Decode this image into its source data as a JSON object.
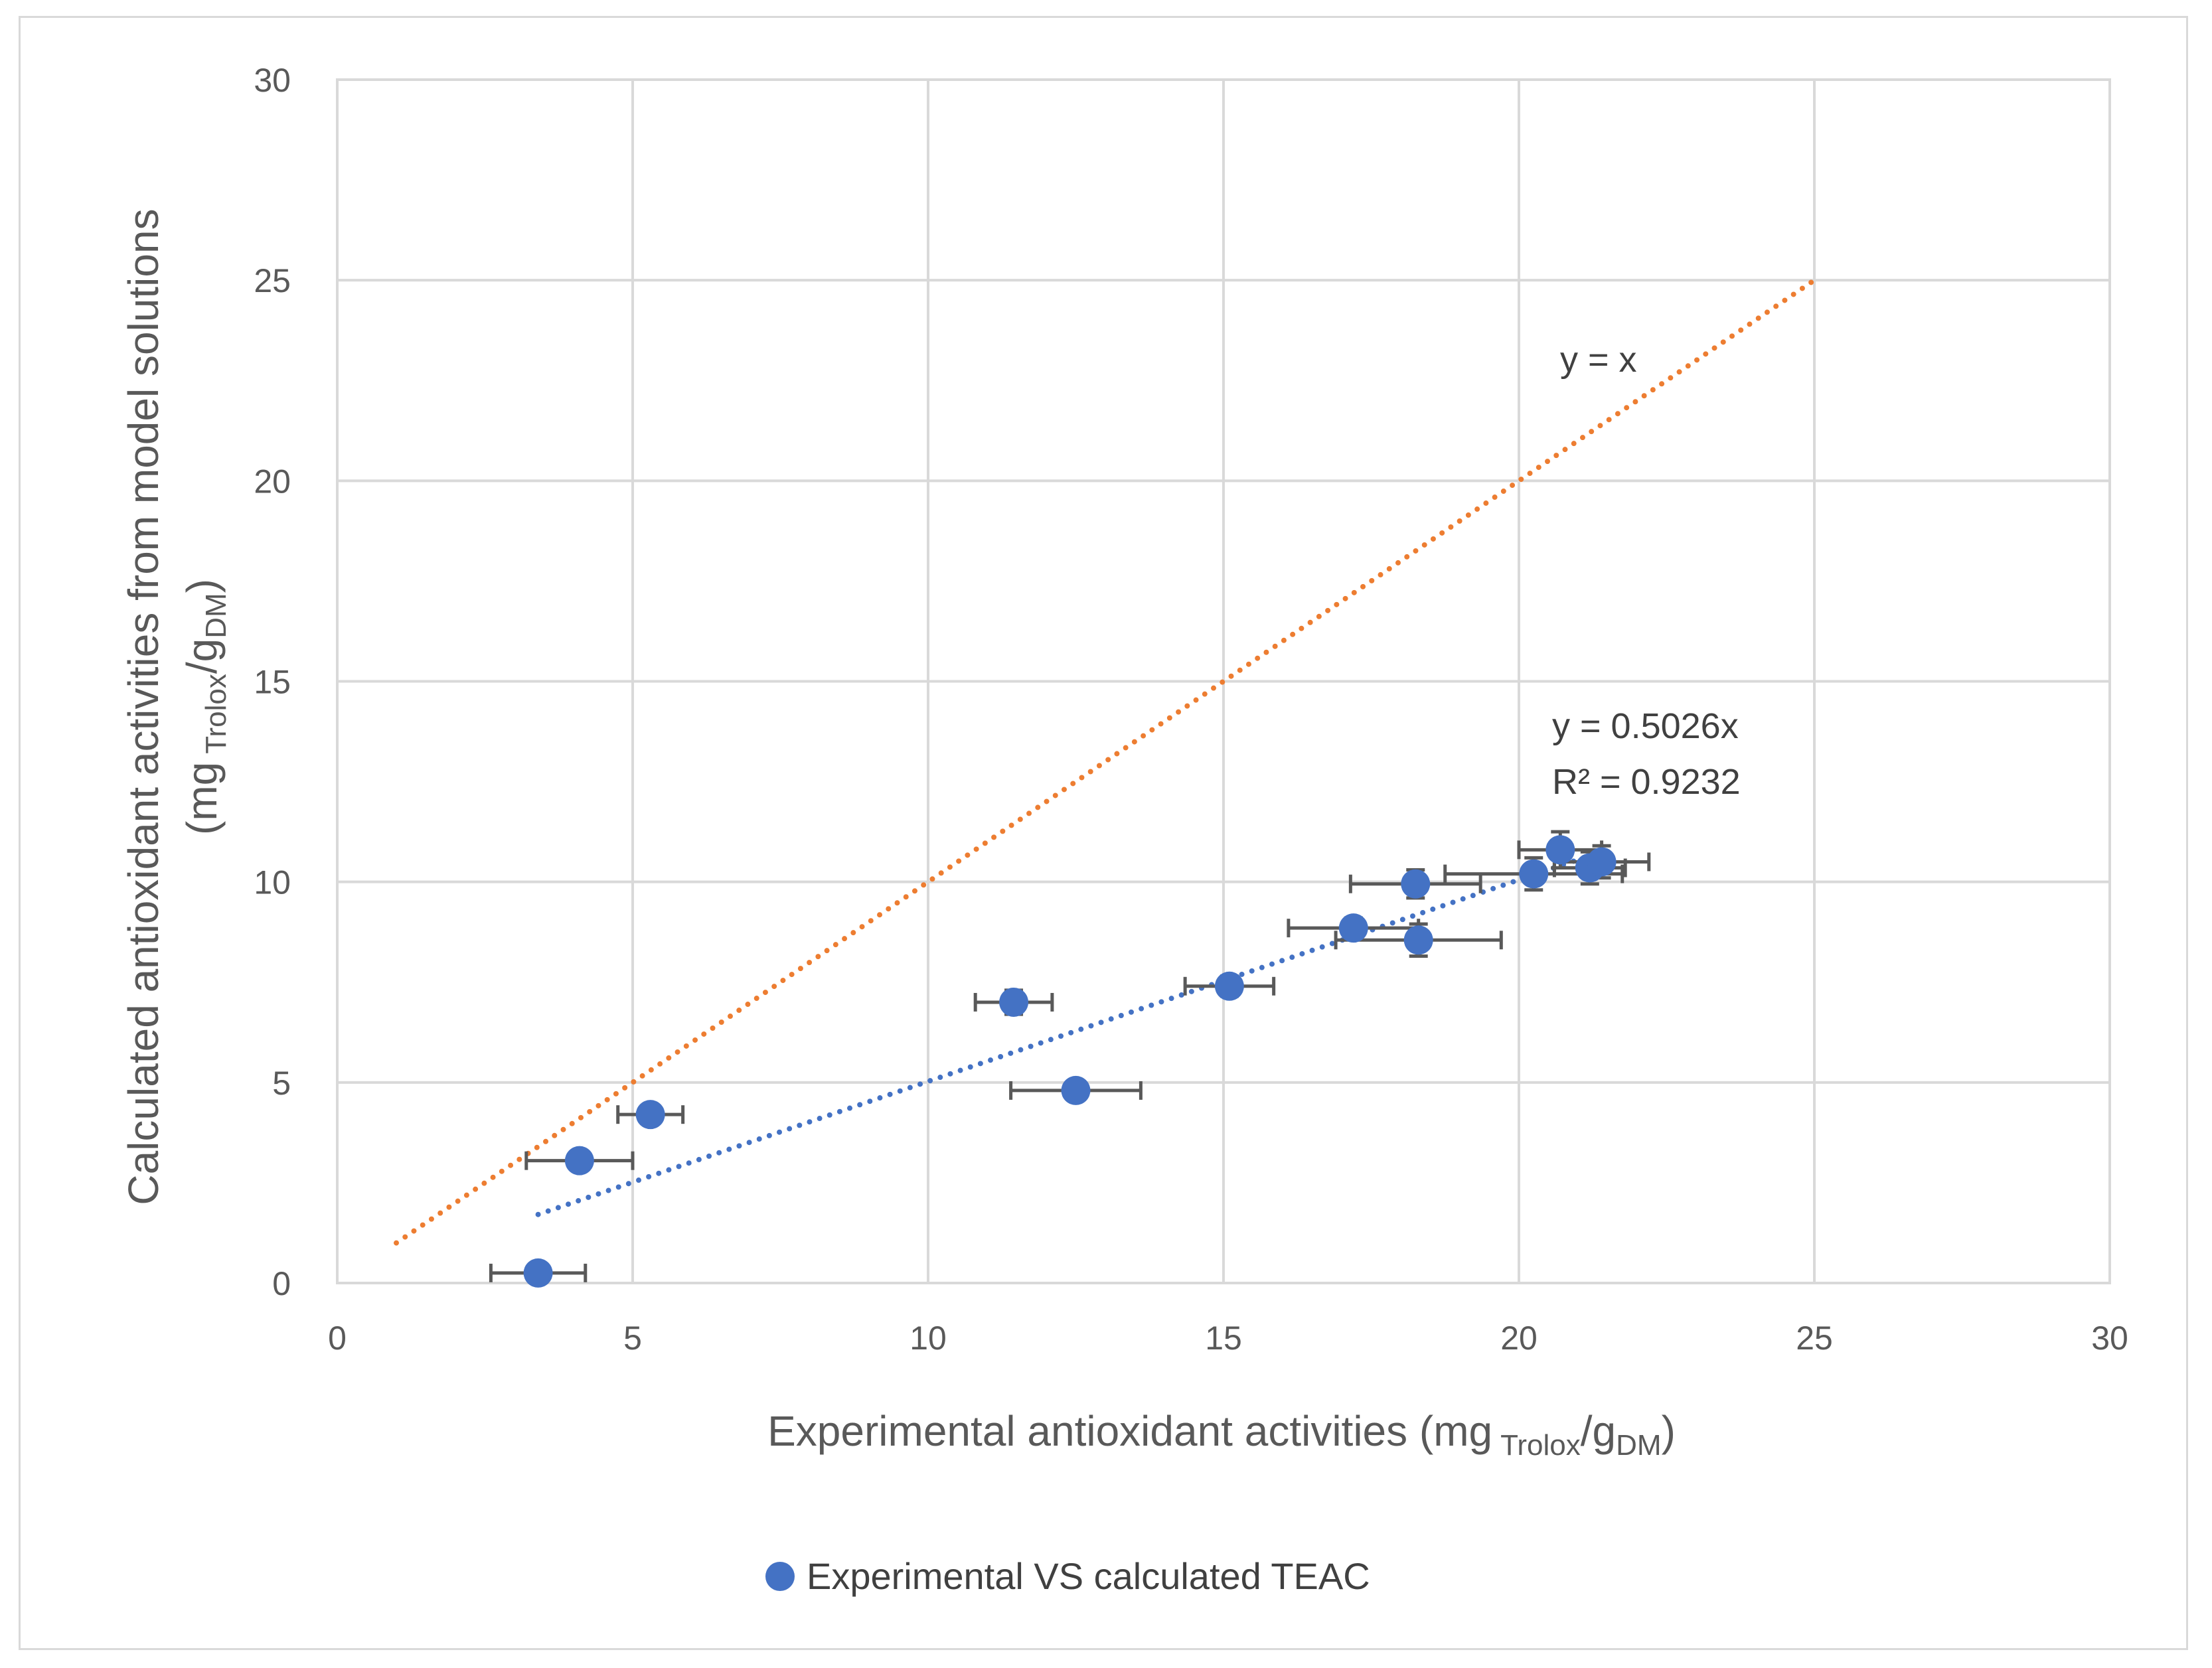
{
  "chart_data": {
    "type": "scatter",
    "title": "",
    "xlabel": {
      "main": "Experimental antioxidant activities (mg",
      "sub1": "Trolox",
      "mid": "/g",
      "sub2": "DM",
      "end": ")"
    },
    "ylabel": {
      "line1": "Calculated antioxidant activities from model solutions",
      "open": "(mg",
      "sub1": "Trolox",
      "mid": "/g",
      "sub2": "DM",
      "end": ")"
    },
    "xlim": [
      0,
      30
    ],
    "ylim": [
      0,
      30
    ],
    "x_ticks": [
      0,
      5,
      10,
      15,
      20,
      25,
      30
    ],
    "y_ticks": [
      0,
      5,
      10,
      15,
      20,
      25,
      30
    ],
    "grid": true,
    "series": [
      {
        "name": "Experimental VS calculated TEAC",
        "color": "#4472c4",
        "points": [
          {
            "x": 3.4,
            "y": 0.25,
            "xerr": 0.8,
            "yerr": 0.1
          },
          {
            "x": 4.1,
            "y": 3.05,
            "xerr": 0.9,
            "yerr": 0.15
          },
          {
            "x": 5.3,
            "y": 4.2,
            "xerr": 0.55,
            "yerr": 0.15
          },
          {
            "x": 11.45,
            "y": 7.0,
            "xerr": 0.65,
            "yerr": 0.3
          },
          {
            "x": 12.5,
            "y": 4.8,
            "xerr": 1.1,
            "yerr": 0.15
          },
          {
            "x": 15.1,
            "y": 7.4,
            "xerr": 0.75,
            "yerr": 0.25
          },
          {
            "x": 17.2,
            "y": 8.85,
            "xerr": 1.1,
            "yerr": 0.25
          },
          {
            "x": 18.25,
            "y": 9.95,
            "xerr": 1.1,
            "yerr": 0.35
          },
          {
            "x": 18.3,
            "y": 8.55,
            "xerr": 1.4,
            "yerr": 0.4
          },
          {
            "x": 20.25,
            "y": 10.2,
            "xerr": 1.5,
            "yerr": 0.4
          },
          {
            "x": 20.7,
            "y": 10.8,
            "xerr": 0.7,
            "yerr": 0.45
          },
          {
            "x": 21.2,
            "y": 10.35,
            "xerr": 0.6,
            "yerr": 0.4
          },
          {
            "x": 21.4,
            "y": 10.5,
            "xerr": 0.8,
            "yerr": 0.4
          }
        ]
      }
    ],
    "reference_line": {
      "label": "y = x",
      "color": "#ed7d31",
      "from": [
        1,
        1
      ],
      "to": [
        25,
        25
      ]
    },
    "trendline": {
      "equation": "y = 0.5026x",
      "r2": "R² = 0.9232",
      "slope": 0.5026,
      "x_range": [
        3.4,
        21.4
      ],
      "color": "#4472c4"
    },
    "legend": {
      "position": "bottom",
      "label": "Experimental VS calculated TEAC"
    }
  }
}
